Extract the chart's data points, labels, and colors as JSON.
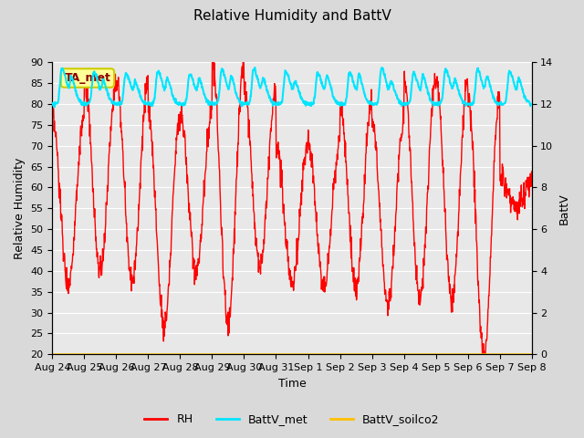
{
  "title": "Relative Humidity and BattV",
  "ylabel_left": "Relative Humidity",
  "ylabel_right": "BattV",
  "xlabel": "Time",
  "ylim_left": [
    20,
    90
  ],
  "ylim_right": [
    0,
    14
  ],
  "yticks_left": [
    20,
    25,
    30,
    35,
    40,
    45,
    50,
    55,
    60,
    65,
    70,
    75,
    80,
    85,
    90
  ],
  "yticks_right": [
    0,
    2,
    4,
    6,
    8,
    10,
    12,
    14
  ],
  "bg_color": "#d9d9d9",
  "plot_bg_color": "#e8e8e8",
  "rh_color": "#ff0000",
  "battv_met_color": "#00e5ff",
  "battv_soilco2_color": "#ffc000",
  "annotation_text": "TA_met",
  "annotation_bg": "#ffff99",
  "annotation_border": "#cccc00",
  "x_tick_labels": [
    "Aug 24",
    "Aug 25",
    "Aug 26",
    "Aug 27",
    "Aug 28",
    "Aug 29",
    "Aug 30",
    "Aug 31",
    "Sep 1",
    "Sep 2",
    "Sep 3",
    "Sep 4",
    "Sep 5",
    "Sep 6",
    "Sep 7",
    "Sep 8"
  ]
}
